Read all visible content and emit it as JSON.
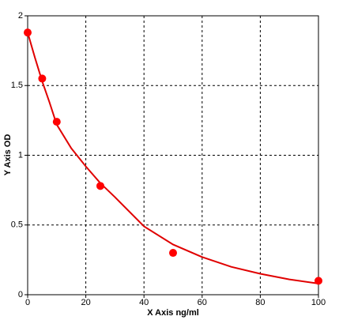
{
  "chart_data": {
    "type": "scatter",
    "x_label": "X Axis ng/ml",
    "y_label": "Y Axis OD",
    "xlim": [
      0,
      100
    ],
    "xticks": [
      0,
      20,
      40,
      60,
      80,
      100
    ],
    "ylim": [
      0,
      2
    ],
    "yticks": [
      0,
      0.5,
      1,
      1.5,
      2
    ],
    "grid": true,
    "series": [
      {
        "mode": "markers",
        "color": "#ff0000",
        "x": [
          0,
          5,
          10,
          25,
          50,
          100
        ],
        "values": [
          1.88,
          1.55,
          1.24,
          0.78,
          0.3,
          0.1
        ]
      },
      {
        "mode": "line",
        "color": "#e00000",
        "x": [
          0,
          2.5,
          5,
          7.5,
          10,
          15,
          20,
          25,
          30,
          40,
          50,
          60,
          70,
          80,
          90,
          100
        ],
        "values": [
          1.88,
          1.7,
          1.53,
          1.38,
          1.22,
          1.05,
          0.92,
          0.8,
          0.7,
          0.49,
          0.36,
          0.27,
          0.2,
          0.15,
          0.11,
          0.08
        ]
      }
    ]
  }
}
